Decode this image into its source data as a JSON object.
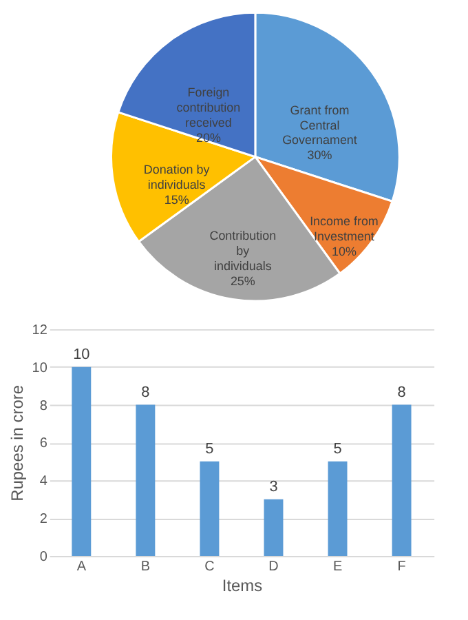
{
  "chart_data": [
    {
      "type": "pie",
      "categories": [
        "Grant from Central Governament",
        "Income from Investment",
        "Contribution by individuals",
        "Donation by individuals",
        "Foreign contribution received"
      ],
      "values": [
        30,
        10,
        25,
        15,
        20
      ],
      "colors": [
        "#5b9bd5",
        "#ed7d31",
        "#a5a5a5",
        "#ffc000",
        "#4472c4"
      ],
      "value_labels": [
        "30%",
        "10%",
        "25%",
        "15%",
        "20%"
      ],
      "legend": false
    },
    {
      "type": "bar",
      "categories": [
        "A",
        "B",
        "C",
        "D",
        "E",
        "F"
      ],
      "values": [
        10,
        8,
        5,
        3,
        5,
        8
      ],
      "color": "#5b9bd5",
      "xlabel": "Items",
      "ylabel": "Rupees in crore",
      "ylim": [
        0,
        12
      ],
      "yticks": [
        0,
        2,
        4,
        6,
        8,
        10,
        12
      ],
      "grid": "y",
      "data_labels": true
    }
  ]
}
